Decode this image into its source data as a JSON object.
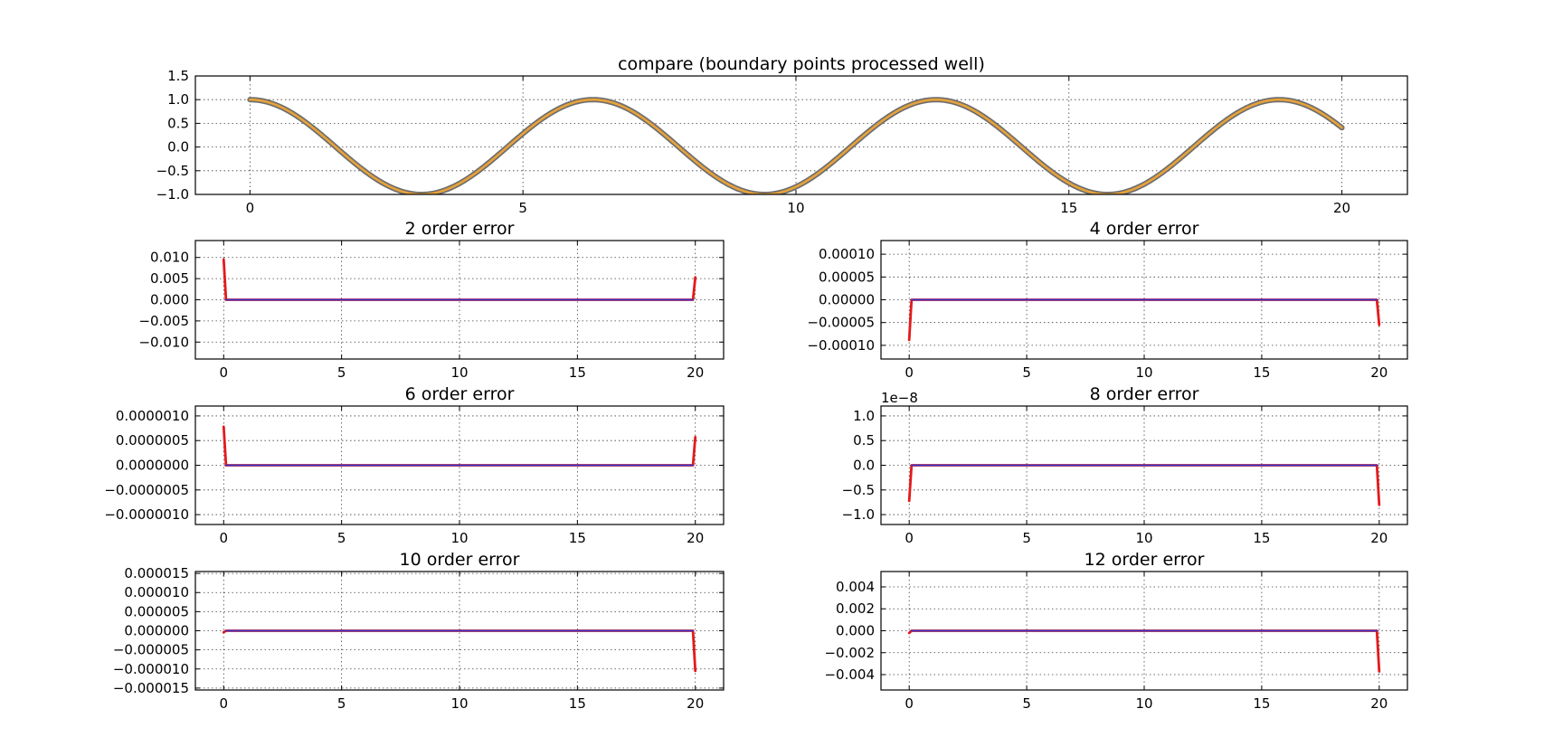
{
  "chart_data": [
    {
      "type": "line",
      "title": "compare (boundary points processed well)",
      "xlim": [
        -1,
        21.2
      ],
      "ylim": [
        -1.0,
        1.5
      ],
      "x_ticks": [
        0,
        5,
        10,
        15,
        20
      ],
      "x_tick_labels": [
        "0",
        "5",
        "10",
        "15",
        "20"
      ],
      "y_ticks": [
        -1.0,
        -0.5,
        0.0,
        0.5,
        1.0,
        1.5
      ],
      "y_tick_labels": [
        "−1.0",
        "−0.5",
        "0.0",
        "0.5",
        "1.0",
        "1.5"
      ],
      "grid": true,
      "x_range": [
        0,
        20
      ],
      "series": [
        {
          "function": "cos(x)",
          "color": "#6e6e6e",
          "style": "thick"
        },
        {
          "function": "cos(x)",
          "color": "#e8a23a",
          "style": "thin"
        }
      ]
    },
    {
      "type": "line",
      "title": "2 order error",
      "xlim": [
        -1.2,
        21.2
      ],
      "ylim": [
        -0.014,
        0.014
      ],
      "x_ticks": [
        0,
        5,
        10,
        15,
        20
      ],
      "x_tick_labels": [
        "0",
        "5",
        "10",
        "15",
        "20"
      ],
      "y_ticks": [
        -0.01,
        -0.005,
        0.0,
        0.005,
        0.01
      ],
      "y_tick_labels": [
        "−0.010",
        "−0.005",
        "0.000",
        "0.005",
        "0.010"
      ],
      "grid": true,
      "series": [
        {
          "color": "#e41a1c",
          "x": [
            0,
            0.1,
            19.9,
            20
          ],
          "y": [
            0.0095,
            0,
            0,
            0.0053
          ]
        },
        {
          "color": "#3636c8",
          "x": [
            0.1,
            19.9
          ],
          "y": [
            0,
            0
          ]
        }
      ]
    },
    {
      "type": "line",
      "title": "4 order error",
      "xlim": [
        -1.2,
        21.2
      ],
      "ylim": [
        -0.00013,
        0.00013
      ],
      "x_ticks": [
        0,
        5,
        10,
        15,
        20
      ],
      "x_tick_labels": [
        "0",
        "5",
        "10",
        "15",
        "20"
      ],
      "y_ticks": [
        -0.0001,
        -5e-05,
        0.0,
        5e-05,
        0.0001
      ],
      "y_tick_labels": [
        "−0.00010",
        "−0.00005",
        "0.00000",
        "0.00005",
        "0.00010"
      ],
      "grid": true,
      "series": [
        {
          "color": "#e41a1c",
          "x": [
            0,
            0.1,
            19.9,
            20
          ],
          "y": [
            -8.8e-05,
            0,
            0,
            -5.5e-05
          ]
        },
        {
          "color": "#3636c8",
          "x": [
            0.1,
            19.9
          ],
          "y": [
            0,
            0
          ]
        }
      ]
    },
    {
      "type": "line",
      "title": "6 order error",
      "xlim": [
        -1.2,
        21.2
      ],
      "ylim": [
        -1.2e-06,
        1.2e-06
      ],
      "x_ticks": [
        0,
        5,
        10,
        15,
        20
      ],
      "x_tick_labels": [
        "0",
        "5",
        "10",
        "15",
        "20"
      ],
      "y_ticks": [
        -1e-06,
        -5e-07,
        0.0,
        5e-07,
        1e-06
      ],
      "y_tick_labels": [
        "−0.0000010",
        "−0.0000005",
        "0.0000000",
        "0.0000005",
        "0.0000010"
      ],
      "grid": true,
      "series": [
        {
          "color": "#e41a1c",
          "x": [
            0,
            0.1,
            19.9,
            20
          ],
          "y": [
            7.8e-07,
            0,
            0,
            5.7e-07
          ]
        },
        {
          "color": "#3636c8",
          "x": [
            0.1,
            19.9
          ],
          "y": [
            0,
            0
          ]
        }
      ]
    },
    {
      "type": "line",
      "title": "8 order error",
      "offset_text": "1e−8",
      "xlim": [
        -1.2,
        21.2
      ],
      "ylim": [
        -1.2,
        1.2
      ],
      "x_ticks": [
        0,
        5,
        10,
        15,
        20
      ],
      "x_tick_labels": [
        "0",
        "5",
        "10",
        "15",
        "20"
      ],
      "y_ticks": [
        -1.0,
        -0.5,
        0.0,
        0.5,
        1.0
      ],
      "y_tick_labels": [
        "−1.0",
        "−0.5",
        "0.0",
        "0.5",
        "1.0"
      ],
      "grid": true,
      "series": [
        {
          "color": "#e41a1c",
          "x": [
            0,
            0.1,
            19.9,
            20
          ],
          "y": [
            -0.72,
            0,
            0,
            -0.8
          ]
        },
        {
          "color": "#3636c8",
          "x": [
            0.1,
            19.9
          ],
          "y": [
            0,
            0
          ]
        }
      ]
    },
    {
      "type": "line",
      "title": "10 order error",
      "xlim": [
        -1.2,
        21.2
      ],
      "ylim": [
        -1.55e-05,
        1.55e-05
      ],
      "x_ticks": [
        0,
        5,
        10,
        15,
        20
      ],
      "x_tick_labels": [
        "0",
        "5",
        "10",
        "15",
        "20"
      ],
      "y_ticks": [
        -1.5e-05,
        -1e-05,
        -5e-06,
        0.0,
        5e-06,
        1e-05,
        1.5e-05
      ],
      "y_tick_labels": [
        "−0.000015",
        "−0.000010",
        "−0.000005",
        "0.000000",
        "0.000005",
        "0.000010",
        "0.000015"
      ],
      "grid": true,
      "series": [
        {
          "color": "#e41a1c",
          "x": [
            0,
            0.1,
            19.9,
            20
          ],
          "y": [
            -4e-07,
            0,
            0,
            -1.05e-05
          ]
        },
        {
          "color": "#3636c8",
          "x": [
            0.1,
            19.9
          ],
          "y": [
            0,
            0
          ]
        }
      ]
    },
    {
      "type": "line",
      "title": "12 order error",
      "xlim": [
        -1.2,
        21.2
      ],
      "ylim": [
        -0.0054,
        0.0054
      ],
      "x_ticks": [
        0,
        5,
        10,
        15,
        20
      ],
      "x_tick_labels": [
        "0",
        "5",
        "10",
        "15",
        "20"
      ],
      "y_ticks": [
        -0.004,
        -0.002,
        0.0,
        0.002,
        0.004
      ],
      "y_tick_labels": [
        "−0.004",
        "−0.002",
        "0.000",
        "0.002",
        "0.004"
      ],
      "grid": true,
      "series": [
        {
          "color": "#e41a1c",
          "x": [
            0,
            0.1,
            19.9,
            20
          ],
          "y": [
            -0.0002,
            0,
            0,
            -0.0037
          ]
        },
        {
          "color": "#3636c8",
          "x": [
            0.1,
            19.9
          ],
          "y": [
            0,
            0
          ]
        }
      ]
    }
  ]
}
